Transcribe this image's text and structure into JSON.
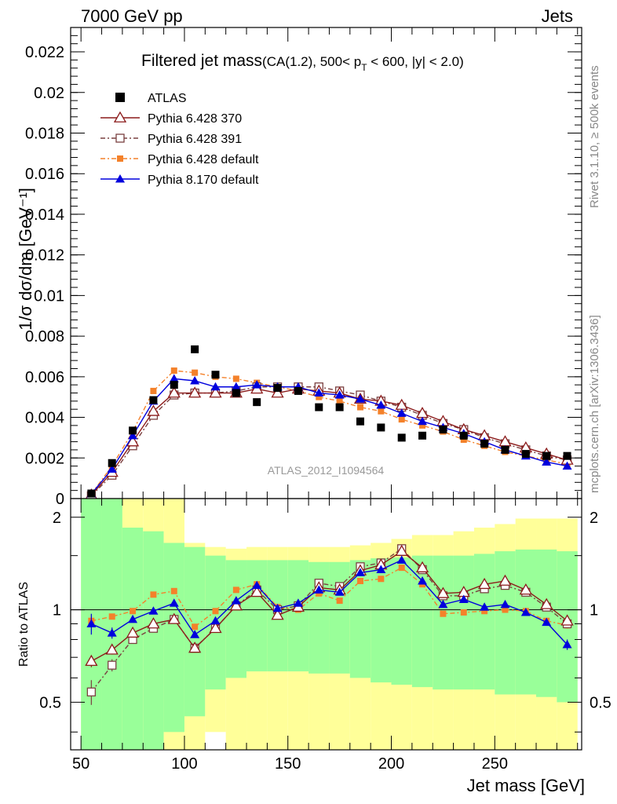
{
  "header": {
    "left": "7000 GeV pp",
    "right": "Jets"
  },
  "side_texts": {
    "rivet": "Rivet 3.1.10, ≥ 500k events",
    "mcplots": "mcplots.cern.ch [arXiv:1306.3436]"
  },
  "colors": {
    "atlas": "#000000",
    "p370": "#8b1a1a",
    "p391": "#7a4040",
    "p6def": "#f4812a",
    "p8def": "#0000dd",
    "band_inner": "#99ff99",
    "band_outer": "#ffff99"
  },
  "chart_data": {
    "type": "line",
    "title_main": "Filtered jet mass",
    "title_sub": "(CA(1.2), 500< p",
    "title_sub_T": "T",
    "title_sub_rest": " < 600, |y| < 2.0)",
    "watermark": "ATLAS_2012_I1094564",
    "xlabel": "Jet mass [GeV]",
    "ylabel": "1/σ dσ/dm [GeV⁻¹]",
    "ratio_ylabel": "Ratio to ATLAS",
    "xlim": [
      45,
      292
    ],
    "ylim": [
      0,
      0.0232
    ],
    "ratio_ylim": [
      0.35,
      2.3
    ],
    "x_ticks": [
      50,
      100,
      150,
      200,
      250
    ],
    "x_tick_labels": [
      "50",
      "100",
      "150",
      "200",
      "250"
    ],
    "y_ticks": [
      0,
      0.002,
      0.004,
      0.006,
      0.008,
      0.01,
      0.012,
      0.014,
      0.016,
      0.018,
      0.02,
      0.022
    ],
    "y_tick_labels": [
      "0",
      "0.002",
      "0.004",
      "0.006",
      "0.008",
      "0.01",
      "0.012",
      "0.014",
      "0.016",
      "0.018",
      "0.02",
      "0.022"
    ],
    "ratio_ticks": [
      0.5,
      1,
      2
    ],
    "ratio_tick_labels": [
      "0.5",
      "1",
      "2"
    ],
    "x": [
      55,
      65,
      75,
      85,
      95,
      105,
      115,
      125,
      135,
      145,
      155,
      165,
      175,
      185,
      195,
      205,
      215,
      225,
      235,
      245,
      255,
      265,
      275,
      285
    ],
    "series": [
      {
        "name": "ATLAS",
        "key": "atlas",
        "values": [
          0.00025,
          0.00175,
          0.00335,
          0.00485,
          0.0056,
          0.00735,
          0.0061,
          0.0052,
          0.00475,
          0.00545,
          0.0053,
          0.0045,
          0.0045,
          0.0038,
          0.0035,
          0.003,
          0.0031,
          0.0034,
          0.0031,
          0.0027,
          0.0024,
          0.0022,
          0.0021,
          0.0021
        ]
      },
      {
        "name": "Pythia 6.428 370",
        "key": "p370",
        "values": [
          0.00018,
          0.0013,
          0.0028,
          0.0043,
          0.0052,
          0.0052,
          0.0052,
          0.0052,
          0.0054,
          0.0052,
          0.0054,
          0.0053,
          0.0052,
          0.0049,
          0.0048,
          0.0046,
          0.0042,
          0.0038,
          0.0034,
          0.0031,
          0.0028,
          0.0025,
          0.0022,
          0.0019
        ]
      },
      {
        "name": "Pythia 6.428 391",
        "key": "p391",
        "values": [
          0.00014,
          0.00115,
          0.0026,
          0.0041,
          0.0051,
          0.0052,
          0.0052,
          0.0053,
          0.0055,
          0.0055,
          0.0055,
          0.0055,
          0.0053,
          0.0051,
          0.0048,
          0.0045,
          0.0041,
          0.0037,
          0.0034,
          0.003,
          0.0027,
          0.0024,
          0.0021,
          0.0019
        ]
      },
      {
        "name": "Pythia 6.428 default",
        "key": "p6def",
        "values": [
          0.00023,
          0.0016,
          0.0033,
          0.0053,
          0.0063,
          0.0062,
          0.006,
          0.0059,
          0.0057,
          0.0055,
          0.0053,
          0.005,
          0.0048,
          0.0045,
          0.0043,
          0.0039,
          0.0036,
          0.0033,
          0.0029,
          0.0026,
          0.0023,
          0.0021,
          0.0019,
          0.0017
        ]
      },
      {
        "name": "Pythia 8.170 default",
        "key": "p8def",
        "values": [
          0.00023,
          0.00145,
          0.0031,
          0.0048,
          0.0059,
          0.0058,
          0.0055,
          0.0055,
          0.0056,
          0.0055,
          0.0055,
          0.0052,
          0.0051,
          0.0049,
          0.0046,
          0.0042,
          0.0038,
          0.0035,
          0.0032,
          0.0028,
          0.0024,
          0.0021,
          0.0018,
          0.0016
        ]
      }
    ],
    "ratio_series": [
      {
        "key": "p370",
        "values": [
          0.68,
          0.74,
          0.84,
          0.9,
          0.93,
          0.75,
          0.87,
          1.03,
          1.14,
          0.96,
          1.02,
          1.18,
          1.16,
          1.34,
          1.4,
          1.55,
          1.37,
          1.13,
          1.14,
          1.21,
          1.24,
          1.16,
          1.04,
          0.92
        ]
      },
      {
        "key": "p391",
        "values": [
          0.54,
          0.66,
          0.8,
          0.87,
          0.93,
          0.75,
          0.87,
          1.03,
          1.16,
          1.0,
          1.03,
          1.22,
          1.19,
          1.38,
          1.42,
          1.58,
          1.35,
          1.11,
          1.11,
          1.17,
          1.2,
          1.14,
          1.02,
          0.9
        ]
      },
      {
        "key": "p6def",
        "values": [
          0.92,
          0.95,
          0.99,
          1.12,
          1.15,
          0.88,
          0.99,
          1.16,
          1.21,
          1.02,
          1.0,
          1.13,
          1.07,
          1.24,
          1.26,
          1.37,
          1.21,
          0.97,
          0.98,
          0.99,
          1.0,
          0.99,
          0.92,
          0.89
        ]
      },
      {
        "key": "p8def",
        "values": [
          0.9,
          0.84,
          0.93,
          0.99,
          1.05,
          0.83,
          0.92,
          1.07,
          1.2,
          1.01,
          1.05,
          1.16,
          1.14,
          1.32,
          1.35,
          1.45,
          1.24,
          1.04,
          1.08,
          1.02,
          1.04,
          0.98,
          0.91,
          0.77
        ]
      }
    ],
    "ratio_errors": {
      "p370": [
        0.03,
        0.025,
        0.02,
        0.015,
        0.012,
        0.012,
        0.012,
        0.012,
        0.012,
        0.012,
        0.012,
        0.013,
        0.013,
        0.014,
        0.015,
        0.016,
        0.016,
        0.016,
        0.017,
        0.018,
        0.019,
        0.02,
        0.021,
        0.023
      ],
      "p391": [
        0.05,
        0.03,
        0.02,
        0.015,
        0.012,
        0.012,
        0.012,
        0.012,
        0.012,
        0.012,
        0.012,
        0.013,
        0.013,
        0.014,
        0.015,
        0.016,
        0.016,
        0.016,
        0.017,
        0.018,
        0.019,
        0.02,
        0.021,
        0.023
      ],
      "p6def": [
        0.04,
        0.02,
        0.015,
        0.012,
        0.01,
        0.01,
        0.01,
        0.01,
        0.01,
        0.01,
        0.01,
        0.011,
        0.011,
        0.012,
        0.013,
        0.014,
        0.014,
        0.015,
        0.016,
        0.017,
        0.018,
        0.019,
        0.02,
        0.022
      ],
      "p8def": [
        0.07,
        0.035,
        0.02,
        0.015,
        0.012,
        0.012,
        0.012,
        0.012,
        0.012,
        0.012,
        0.012,
        0.013,
        0.013,
        0.014,
        0.015,
        0.016,
        0.016,
        0.016,
        0.017,
        0.018,
        0.019,
        0.02,
        0.021,
        0.03
      ]
    },
    "band_bins": [
      [
        50,
        60
      ],
      [
        60,
        70
      ],
      [
        70,
        80
      ],
      [
        80,
        90
      ],
      [
        90,
        100
      ],
      [
        100,
        110
      ],
      [
        110,
        120
      ],
      [
        120,
        130
      ],
      [
        130,
        140
      ],
      [
        140,
        150
      ],
      [
        150,
        160
      ],
      [
        160,
        170
      ],
      [
        170,
        180
      ],
      [
        180,
        190
      ],
      [
        190,
        200
      ],
      [
        200,
        210
      ],
      [
        210,
        220
      ],
      [
        220,
        230
      ],
      [
        230,
        240
      ],
      [
        240,
        250
      ],
      [
        250,
        260
      ],
      [
        260,
        270
      ],
      [
        270,
        280
      ],
      [
        280,
        290
      ]
    ],
    "band_inner": [
      [
        0.35,
        2.3
      ],
      [
        0.35,
        2.3
      ],
      [
        0.35,
        1.85
      ],
      [
        0.35,
        1.8
      ],
      [
        0.4,
        1.65
      ],
      [
        0.45,
        1.6
      ],
      [
        0.55,
        1.5
      ],
      [
        0.6,
        1.45
      ],
      [
        0.63,
        1.45
      ],
      [
        0.63,
        1.45
      ],
      [
        0.63,
        1.45
      ],
      [
        0.62,
        1.43
      ],
      [
        0.62,
        1.43
      ],
      [
        0.6,
        1.45
      ],
      [
        0.58,
        1.47
      ],
      [
        0.57,
        1.48
      ],
      [
        0.56,
        1.5
      ],
      [
        0.55,
        1.5
      ],
      [
        0.55,
        1.5
      ],
      [
        0.55,
        1.52
      ],
      [
        0.53,
        1.55
      ],
      [
        0.53,
        1.57
      ],
      [
        0.52,
        1.57
      ],
      [
        0.5,
        1.55
      ]
    ],
    "band_outer": [
      [
        0.35,
        2.3
      ],
      [
        0.35,
        2.3
      ],
      [
        0.35,
        2.3
      ],
      [
        0.35,
        2.3
      ],
      [
        0.35,
        2.3
      ],
      [
        0.35,
        1.65
      ],
      [
        0.4,
        1.6
      ],
      [
        0.35,
        1.58
      ],
      [
        0.35,
        1.6
      ],
      [
        0.35,
        1.6
      ],
      [
        0.35,
        1.6
      ],
      [
        0.35,
        1.6
      ],
      [
        0.35,
        1.6
      ],
      [
        0.35,
        1.62
      ],
      [
        0.35,
        1.65
      ],
      [
        0.35,
        1.7
      ],
      [
        0.35,
        1.75
      ],
      [
        0.35,
        1.75
      ],
      [
        0.35,
        1.8
      ],
      [
        0.35,
        1.85
      ],
      [
        0.35,
        1.9
      ],
      [
        0.35,
        1.98
      ],
      [
        0.35,
        1.98
      ],
      [
        0.35,
        1.98
      ]
    ]
  }
}
